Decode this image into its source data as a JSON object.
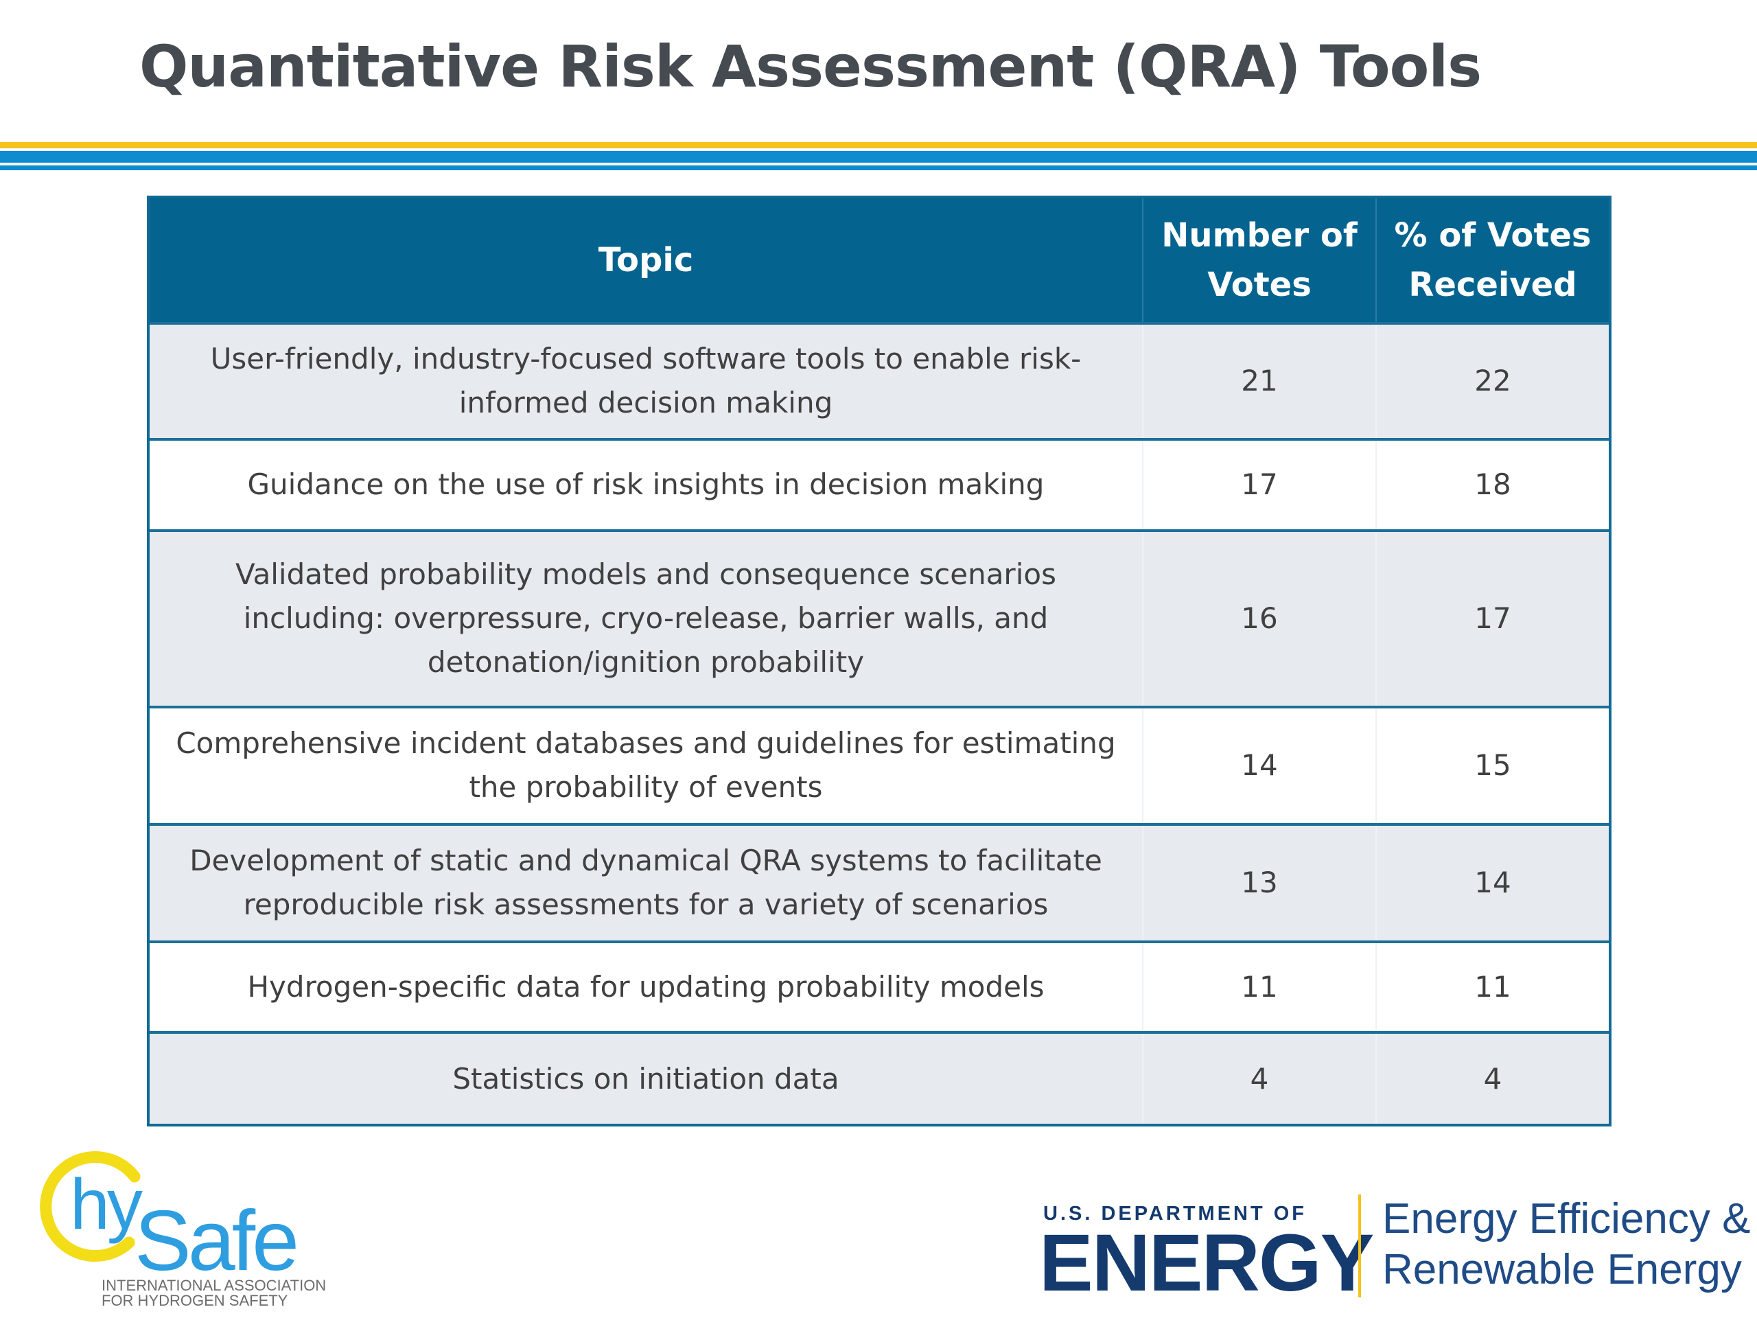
{
  "title": "Quantitative Risk Assessment (QRA) Tools",
  "colors": {
    "title": "#454b50",
    "stripe_yellow": "#f6c21b",
    "stripe_blue": "#0f8bd0",
    "header_bg": "#04648f",
    "row_shade": "#e7eaef",
    "doe_blue": "#143a6e"
  },
  "table": {
    "headers": {
      "topic": "Topic",
      "votes": "Number of Votes",
      "percent": "% of Votes Received"
    },
    "rows": [
      {
        "topic": "User-friendly, industry-focused software tools to enable risk-informed decision making",
        "votes": "21",
        "percent": "22"
      },
      {
        "topic": "Guidance on the use of risk insights in decision making",
        "votes": "17",
        "percent": "18"
      },
      {
        "topic": "Validated probability models and consequence scenarios including: overpressure, cryo-release, barrier walls, and detonation/ignition probability",
        "votes": "16",
        "percent": "17"
      },
      {
        "topic": "Comprehensive incident databases and guidelines for estimating the probability of events",
        "votes": "14",
        "percent": "15"
      },
      {
        "topic": "Development of static and dynamical QRA systems to facilitate reproducible risk assessments for a variety of scenarios",
        "votes": "13",
        "percent": "14"
      },
      {
        "topic": "Hydrogen-specific data for updating probability models",
        "votes": "11",
        "percent": "11"
      },
      {
        "topic": "Statistics on initiation data",
        "votes": "4",
        "percent": "4"
      }
    ]
  },
  "logos": {
    "hysafe": {
      "wordmark_hy": "hy",
      "wordmark_safe": "Safe",
      "line1": "INTERNATIONAL ASSOCIATION",
      "line2": "FOR HYDROGEN SAFETY"
    },
    "doe": {
      "subtitle": "U.S. DEPARTMENT OF",
      "name": "ENERGY",
      "eere_line1": "Energy Efficiency &",
      "eere_line2": "Renewable Energy"
    }
  }
}
